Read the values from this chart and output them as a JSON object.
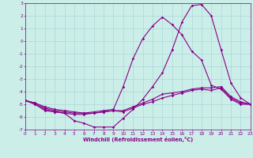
{
  "xlabel": "Windchill (Refroidissement éolien,°C)",
  "background_color": "#cceee8",
  "grid_color": "#aad8d8",
  "line_color": "#880088",
  "xlim": [
    0,
    23
  ],
  "ylim": [
    -7,
    3
  ],
  "xticks": [
    0,
    1,
    2,
    3,
    4,
    5,
    6,
    7,
    8,
    9,
    10,
    11,
    12,
    13,
    14,
    15,
    16,
    17,
    18,
    19,
    20,
    21,
    22,
    23
  ],
  "yticks": [
    -7,
    -6,
    -5,
    -4,
    -3,
    -2,
    -1,
    0,
    1,
    2,
    3
  ],
  "curve1_x": [
    0,
    1,
    2,
    3,
    4,
    5,
    6,
    7,
    8,
    9,
    10,
    11,
    12,
    13,
    14,
    15,
    16,
    17,
    18,
    19,
    20,
    21,
    22,
    23
  ],
  "curve1_y": [
    -4.7,
    -5.0,
    -5.5,
    -5.6,
    -5.7,
    -6.3,
    -6.5,
    -6.8,
    -6.8,
    -6.8,
    -6.1,
    -5.4,
    -4.6,
    -3.6,
    -2.5,
    -0.7,
    1.5,
    2.8,
    2.9,
    2.0,
    -0.7,
    -3.3,
    -4.5,
    -5.0
  ],
  "curve2_x": [
    0,
    1,
    2,
    3,
    4,
    5,
    6,
    7,
    8,
    9,
    10,
    11,
    12,
    13,
    14,
    15,
    16,
    17,
    18,
    19,
    20,
    21,
    22,
    23
  ],
  "curve2_y": [
    -4.7,
    -5.0,
    -5.4,
    -5.6,
    -5.7,
    -5.8,
    -5.8,
    -5.7,
    -5.6,
    -5.5,
    -5.6,
    -5.3,
    -5.0,
    -4.8,
    -4.5,
    -4.3,
    -4.1,
    -3.9,
    -3.8,
    -3.9,
    -3.7,
    -4.5,
    -4.9,
    -5.0
  ],
  "curve3_x": [
    0,
    1,
    2,
    3,
    4,
    5,
    6,
    7,
    8,
    9,
    10,
    11,
    12,
    13,
    14,
    15,
    16,
    17,
    18,
    19,
    20,
    21,
    22,
    23
  ],
  "curve3_y": [
    -4.7,
    -4.9,
    -5.3,
    -5.5,
    -5.6,
    -5.7,
    -5.7,
    -5.7,
    -5.6,
    -5.5,
    -5.5,
    -5.2,
    -4.9,
    -4.6,
    -4.2,
    -4.1,
    -4.0,
    -3.8,
    -3.7,
    -3.7,
    -3.6,
    -4.4,
    -4.8,
    -5.0
  ],
  "curve4_x": [
    0,
    1,
    2,
    3,
    4,
    5,
    6,
    7,
    8,
    9,
    10,
    11,
    12,
    13,
    14,
    15,
    16,
    17,
    18,
    19,
    20,
    21,
    22,
    23
  ],
  "curve4_y": [
    -4.7,
    -4.9,
    -5.2,
    -5.4,
    -5.5,
    -5.6,
    -5.7,
    -5.6,
    -5.5,
    -5.4,
    -3.6,
    -1.4,
    0.2,
    1.2,
    1.9,
    1.3,
    0.5,
    -0.8,
    -1.5,
    -3.5,
    -3.8,
    -4.6,
    -5.0,
    -5.0
  ],
  "marker_size": 1.8,
  "line_width": 0.8,
  "tick_fontsize": 4.2,
  "xlabel_fontsize": 4.8
}
